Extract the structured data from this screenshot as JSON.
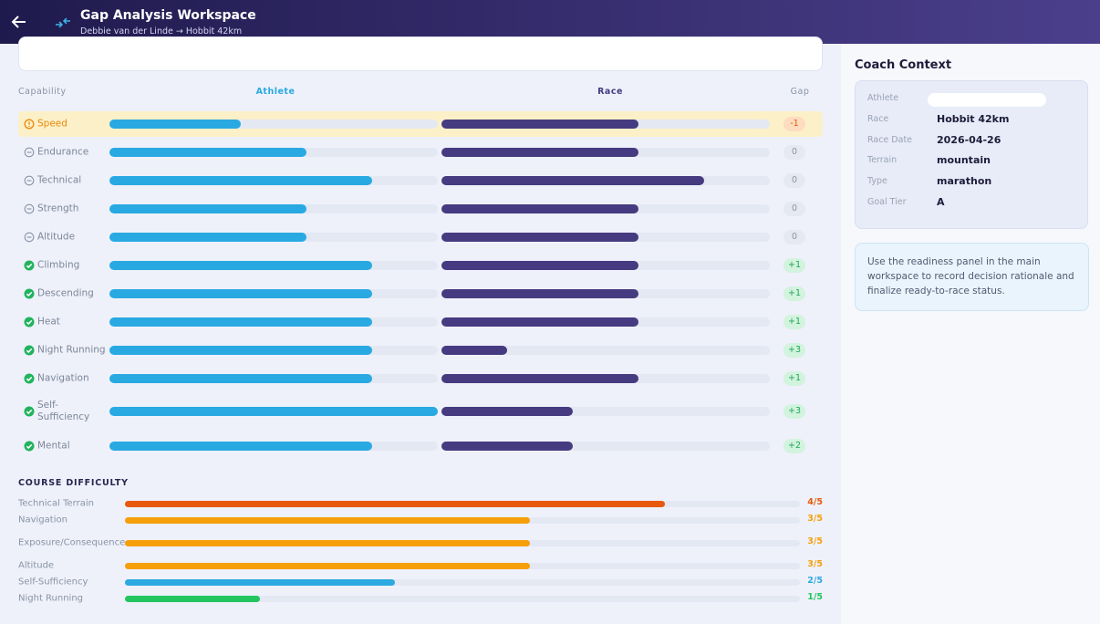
{
  "header": {
    "title": "Gap Analysis Workspace",
    "subtitle": "Debbie van der Linde → Hobbit 42km"
  },
  "capabilities": {
    "columns": [
      "Capability",
      "Athlete",
      "Race",
      "Gap"
    ],
    "xlim": [
      0,
      5
    ],
    "athlete_color": "#29a9e1",
    "race_color": "#463a80",
    "rows": [
      {
        "name": "Speed",
        "athlete": 2,
        "race": 3,
        "gap": "-1"
      },
      {
        "name": "Endurance",
        "athlete": 3,
        "race": 3,
        "gap": "0"
      },
      {
        "name": "Technical",
        "athlete": 4,
        "race": 4,
        "gap": "0"
      },
      {
        "name": "Strength",
        "athlete": 3,
        "race": 3,
        "gap": "0"
      },
      {
        "name": "Altitude",
        "athlete": 3,
        "race": 3,
        "gap": "0"
      },
      {
        "name": "Climbing",
        "athlete": 4,
        "race": 3,
        "gap": "+1"
      },
      {
        "name": "Descending",
        "athlete": 4,
        "race": 3,
        "gap": "+1"
      },
      {
        "name": "Heat",
        "athlete": 4,
        "race": 3,
        "gap": "+1"
      },
      {
        "name": "Night Running",
        "athlete": 4,
        "race": 1,
        "gap": "+3"
      },
      {
        "name": "Navigation",
        "athlete": 4,
        "race": 3,
        "gap": "+1"
      },
      {
        "name": "Self-Sufficiency",
        "athlete": 5,
        "race": 2,
        "gap": "+3"
      },
      {
        "name": "Mental",
        "athlete": 4,
        "race": 2,
        "gap": "+2"
      }
    ]
  },
  "course_difficulty": {
    "title": "COURSE DIFFICULTY",
    "xlim": [
      0,
      5
    ],
    "items": [
      {
        "name": "Technical Terrain",
        "value": 4,
        "label": "4/5",
        "color": "#e8590c"
      },
      {
        "name": "Navigation",
        "value": 3,
        "label": "3/5",
        "color": "#f59f0b"
      },
      {
        "name": "Exposure/Consequence",
        "value": 3,
        "label": "3/5",
        "color": "#f59f0b"
      },
      {
        "name": "Altitude",
        "value": 3,
        "label": "3/5",
        "color": "#f59f0b"
      },
      {
        "name": "Self-Sufficiency",
        "value": 2,
        "label": "2/5",
        "color": "#2ba9e0"
      },
      {
        "name": "Night Running",
        "value": 1,
        "label": "1/5",
        "color": "#22c55e"
      }
    ]
  },
  "coach_context": {
    "title": "Coach Context",
    "fields": [
      {
        "label": "Athlete"
      },
      {
        "label": "Race",
        "value": "Hobbit 42km"
      },
      {
        "label": "Race Date",
        "value": "2026-04-26"
      },
      {
        "label": "Terrain",
        "value": "mountain"
      },
      {
        "label": "Type",
        "value": "marathon"
      },
      {
        "label": "Goal Tier",
        "value": "A"
      }
    ],
    "note": "Use the readiness panel in the main workspace to record decision rationale and finalize ready-to-race status."
  }
}
